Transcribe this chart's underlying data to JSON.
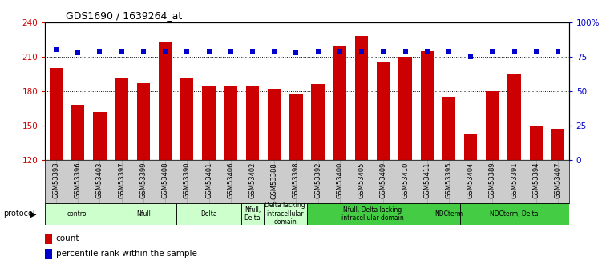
{
  "title": "GDS1690 / 1639264_at",
  "samples": [
    "GSM53393",
    "GSM53396",
    "GSM53403",
    "GSM53397",
    "GSM53399",
    "GSM53408",
    "GSM53390",
    "GSM53401",
    "GSM53406",
    "GSM53402",
    "GSM53388",
    "GSM53398",
    "GSM53392",
    "GSM53400",
    "GSM53405",
    "GSM53409",
    "GSM53410",
    "GSM53411",
    "GSM53395",
    "GSM53404",
    "GSM53389",
    "GSM53391",
    "GSM53394",
    "GSM53407"
  ],
  "counts": [
    200,
    168,
    162,
    192,
    187,
    222,
    192,
    185,
    185,
    185,
    182,
    178,
    186,
    219,
    228,
    205,
    210,
    215,
    175,
    143,
    180,
    195,
    150,
    147
  ],
  "percentile": [
    80,
    78,
    79,
    79,
    79,
    79,
    79,
    79,
    79,
    79,
    79,
    78,
    79,
    79,
    79,
    79,
    79,
    79,
    79,
    75,
    79,
    79,
    79,
    79
  ],
  "ylim_left": [
    120,
    240
  ],
  "ylim_right": [
    0,
    100
  ],
  "yticks_left": [
    120,
    150,
    180,
    210,
    240
  ],
  "yticks_right": [
    0,
    25,
    50,
    75,
    100
  ],
  "bar_color": "#cc0000",
  "dot_color": "#0000cc",
  "protocol_groups": [
    {
      "label": "control",
      "start": 0,
      "end": 3,
      "color": "#ccffcc"
    },
    {
      "label": "Nfull",
      "start": 3,
      "end": 6,
      "color": "#ccffcc"
    },
    {
      "label": "Delta",
      "start": 6,
      "end": 9,
      "color": "#ccffcc"
    },
    {
      "label": "Nfull,\nDelta",
      "start": 9,
      "end": 10,
      "color": "#ccffcc"
    },
    {
      "label": "Delta lacking\nintracellular\ndomain",
      "start": 10,
      "end": 12,
      "color": "#ccffcc"
    },
    {
      "label": "Nfull, Delta lacking\nintracellular domain",
      "start": 12,
      "end": 18,
      "color": "#44cc44"
    },
    {
      "label": "NDCterm",
      "start": 18,
      "end": 19,
      "color": "#44cc44"
    },
    {
      "label": "NDCterm, Delta",
      "start": 19,
      "end": 24,
      "color": "#44cc44"
    }
  ],
  "bg_color": "#ffffff",
  "tick_label_color_left": "#cc0000",
  "tick_label_color_right": "#0000cc",
  "xtick_bg_color": "#cccccc"
}
